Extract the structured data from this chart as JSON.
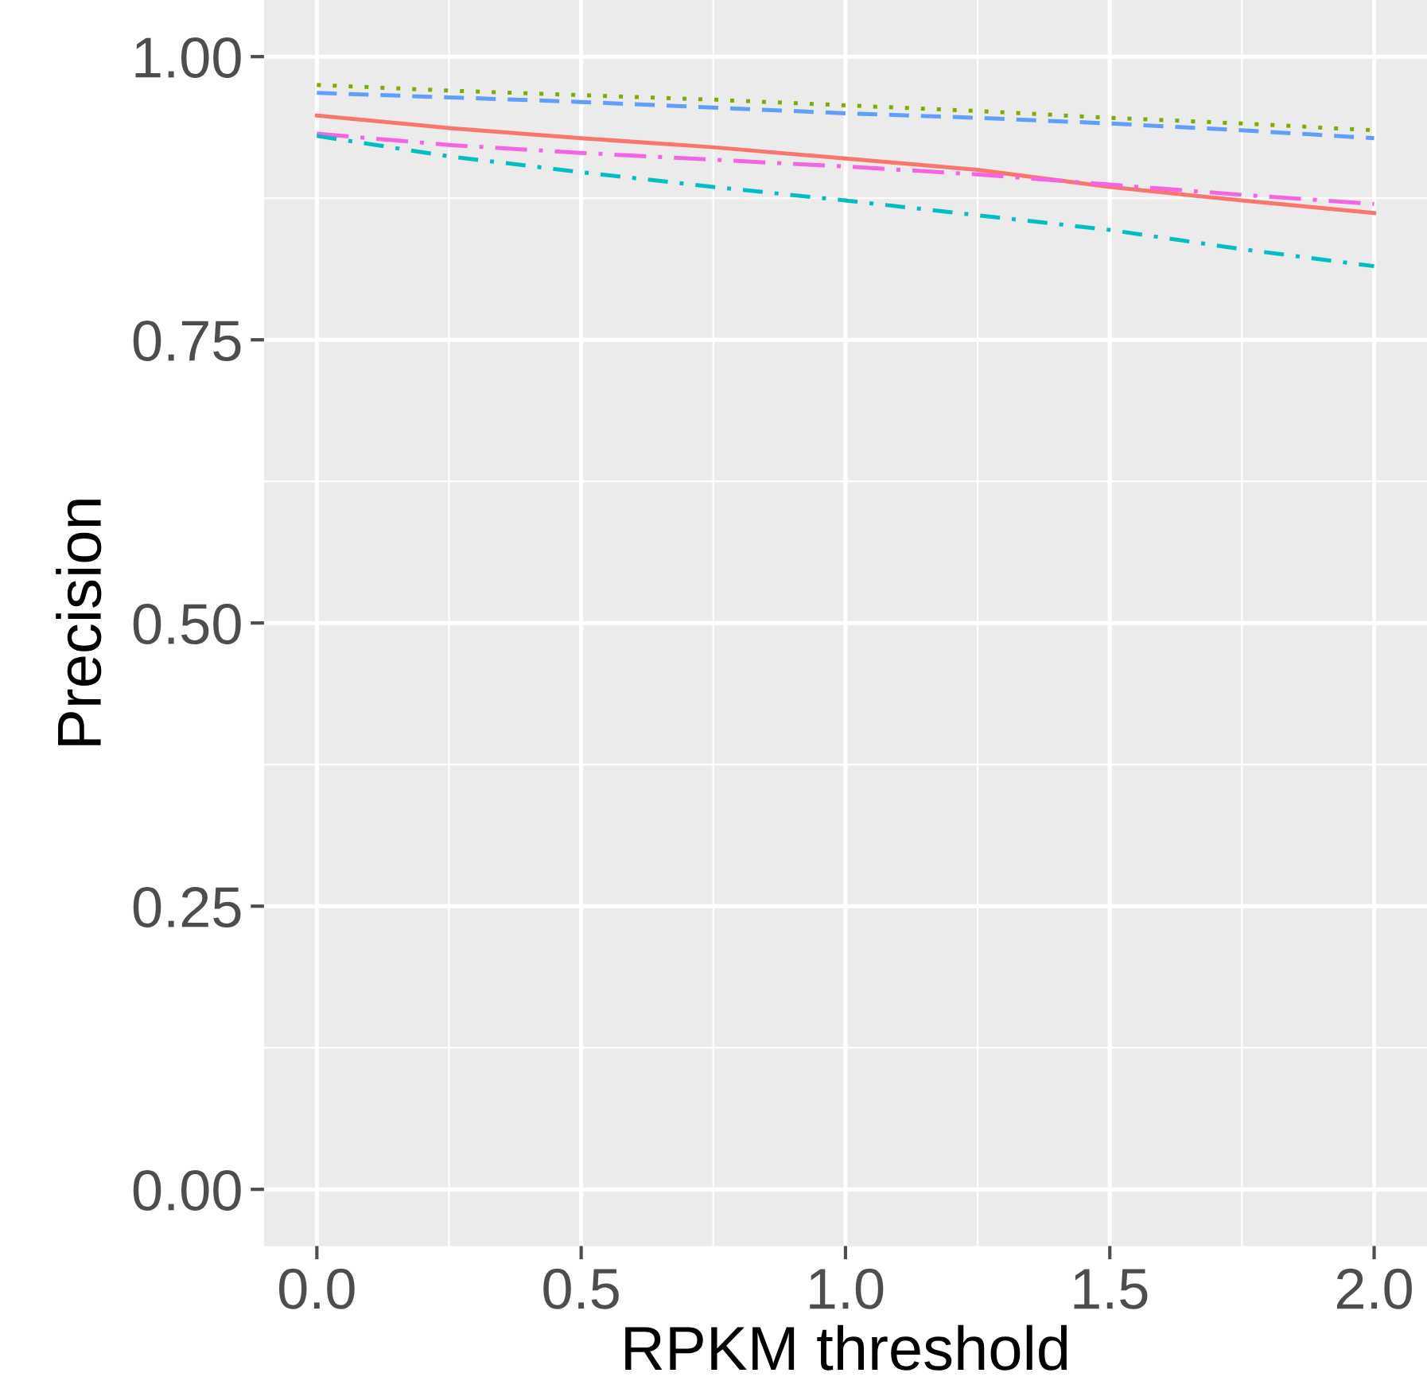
{
  "chart_data": {
    "type": "line",
    "xlabel": "RPKM threshold",
    "ylabel": "Precision",
    "x": [
      0,
      0.25,
      0.5,
      0.75,
      1.0,
      1.25,
      1.5,
      1.75,
      2.0
    ],
    "series": [
      {
        "color": "#F8766D",
        "line_style": "solid",
        "values": [
          0.948,
          0.937,
          0.928,
          0.92,
          0.91,
          0.9,
          0.885,
          0.873,
          0.862
        ]
      },
      {
        "color": "#7CAE00",
        "line_style": "dotted",
        "values": [
          0.975,
          0.97,
          0.966,
          0.962,
          0.957,
          0.952,
          0.946,
          0.941,
          0.935
        ]
      },
      {
        "color": "#619CFF",
        "line_style": "dashed",
        "values": [
          0.968,
          0.964,
          0.96,
          0.955,
          0.95,
          0.946,
          0.941,
          0.935,
          0.928
        ]
      },
      {
        "color": "#F564E3",
        "line_style": "longdashdot",
        "values": [
          0.932,
          0.922,
          0.915,
          0.909,
          0.903,
          0.896,
          0.887,
          0.878,
          0.87
        ]
      },
      {
        "color": "#00BFC4",
        "line_style": "dashdot",
        "values": [
          0.93,
          0.912,
          0.898,
          0.885,
          0.873,
          0.86,
          0.847,
          0.83,
          0.815
        ]
      }
    ],
    "xlim": [
      -0.1,
      2.1
    ],
    "ylim": [
      -0.05,
      1.05
    ],
    "xticks": [
      {
        "value": 0,
        "label": "0.0"
      },
      0.5,
      {
        "value": 1,
        "label": "1.0"
      },
      1.5,
      {
        "value": 2,
        "label": "2.0"
      }
    ],
    "yticks": [
      {
        "value": 0,
        "label": "0.00"
      },
      0.25,
      {
        "value": 0.5,
        "label": "0.50"
      },
      0.75,
      {
        "value": 1,
        "label": "1.00"
      }
    ],
    "grid": true,
    "legend": false
  }
}
